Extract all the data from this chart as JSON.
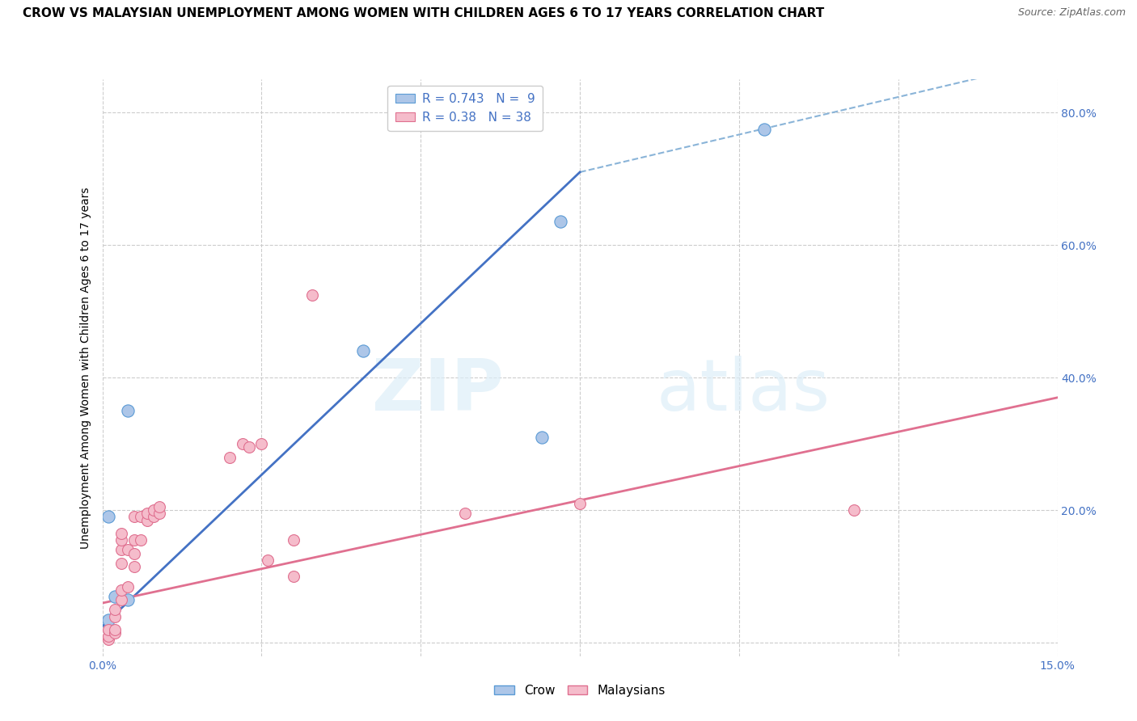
{
  "title": "CROW VS MALAYSIAN UNEMPLOYMENT AMONG WOMEN WITH CHILDREN AGES 6 TO 17 YEARS CORRELATION CHART",
  "source": "Source: ZipAtlas.com",
  "ylabel": "Unemployment Among Women with Children Ages 6 to 17 years",
  "xlim": [
    0.0,
    0.15
  ],
  "ylim": [
    -0.02,
    0.85
  ],
  "yticks": [
    0.0,
    0.2,
    0.4,
    0.6,
    0.8
  ],
  "ytick_labels": [
    "",
    "20.0%",
    "40.0%",
    "60.0%",
    "80.0%"
  ],
  "xticks": [
    0.0,
    0.025,
    0.05,
    0.075,
    0.1,
    0.125,
    0.15
  ],
  "crow_color": "#adc6e8",
  "crow_edge_color": "#5b9bd5",
  "malaysian_color": "#f5bccb",
  "malaysian_edge_color": "#e07090",
  "crow_R": 0.743,
  "crow_N": 9,
  "malaysian_R": 0.38,
  "malaysian_N": 38,
  "legend_color": "#4472c4",
  "watermark_zip": "ZIP",
  "watermark_atlas": "atlas",
  "crow_line_color": "#4472c4",
  "malaysian_line_color": "#e07090",
  "dashed_line_color": "#8ab4d8",
  "crow_line_x": [
    0.0,
    0.075
  ],
  "crow_line_y": [
    0.025,
    0.71
  ],
  "dashed_line_x": [
    0.075,
    0.15
  ],
  "dashed_line_y": [
    0.71,
    0.88
  ],
  "malaysian_line_x": [
    0.0,
    0.15
  ],
  "malaysian_line_y": [
    0.06,
    0.37
  ],
  "crow_points_x": [
    0.001,
    0.001,
    0.002,
    0.004,
    0.004,
    0.041,
    0.069,
    0.072,
    0.104
  ],
  "crow_points_y": [
    0.19,
    0.035,
    0.07,
    0.065,
    0.35,
    0.44,
    0.31,
    0.635,
    0.775
  ],
  "malaysian_points_x": [
    0.001,
    0.001,
    0.001,
    0.002,
    0.002,
    0.002,
    0.002,
    0.003,
    0.003,
    0.003,
    0.003,
    0.003,
    0.003,
    0.004,
    0.004,
    0.005,
    0.005,
    0.005,
    0.005,
    0.006,
    0.006,
    0.007,
    0.007,
    0.008,
    0.008,
    0.009,
    0.009,
    0.02,
    0.022,
    0.023,
    0.025,
    0.026,
    0.03,
    0.03,
    0.033,
    0.057,
    0.075,
    0.118
  ],
  "malaysian_points_y": [
    0.005,
    0.01,
    0.02,
    0.015,
    0.02,
    0.04,
    0.05,
    0.065,
    0.08,
    0.12,
    0.14,
    0.155,
    0.165,
    0.085,
    0.14,
    0.115,
    0.135,
    0.155,
    0.19,
    0.155,
    0.19,
    0.185,
    0.195,
    0.19,
    0.2,
    0.195,
    0.205,
    0.28,
    0.3,
    0.295,
    0.3,
    0.125,
    0.1,
    0.155,
    0.525,
    0.195,
    0.21,
    0.2
  ],
  "background_color": "#ffffff",
  "grid_color": "#cccccc",
  "title_fontsize": 11,
  "axis_label_fontsize": 10,
  "tick_fontsize": 10
}
